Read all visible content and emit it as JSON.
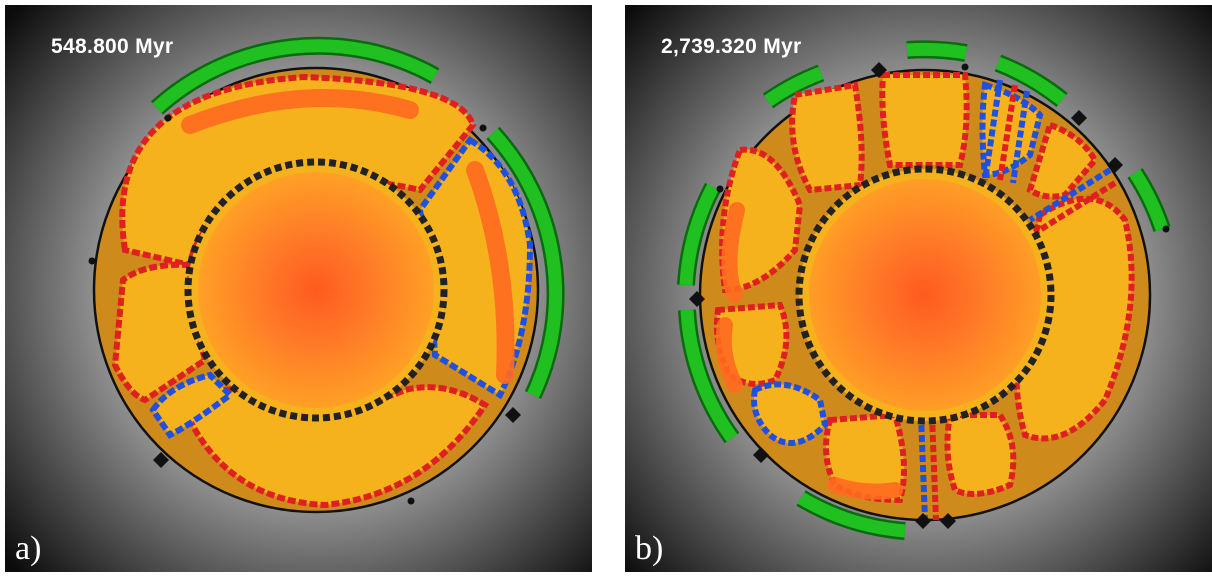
{
  "panels": [
    {
      "tag": "a)",
      "time": "548.800 Myr",
      "colors": {
        "background_center": "#f5f5f5",
        "background_edge": "#0b0b0b",
        "mantle": "#f6b21c",
        "core_center": "#ff5a20",
        "core_edge": "#ffa025",
        "continent": "#20c020",
        "hot_plume": "#ff6a20",
        "subduction": "#2050e0",
        "spreading": "#e02020"
      }
    },
    {
      "tag": "b)",
      "time": "2,739.320 Myr",
      "colors": {
        "background_center": "#f5f5f5",
        "background_edge": "#0b0b0b",
        "mantle": "#f6b21c",
        "core_center": "#ff5a20",
        "core_edge": "#ffa025",
        "continent": "#20c020",
        "hot_plume": "#ff6a20",
        "subduction": "#2050e0",
        "spreading": "#e02020"
      }
    }
  ]
}
